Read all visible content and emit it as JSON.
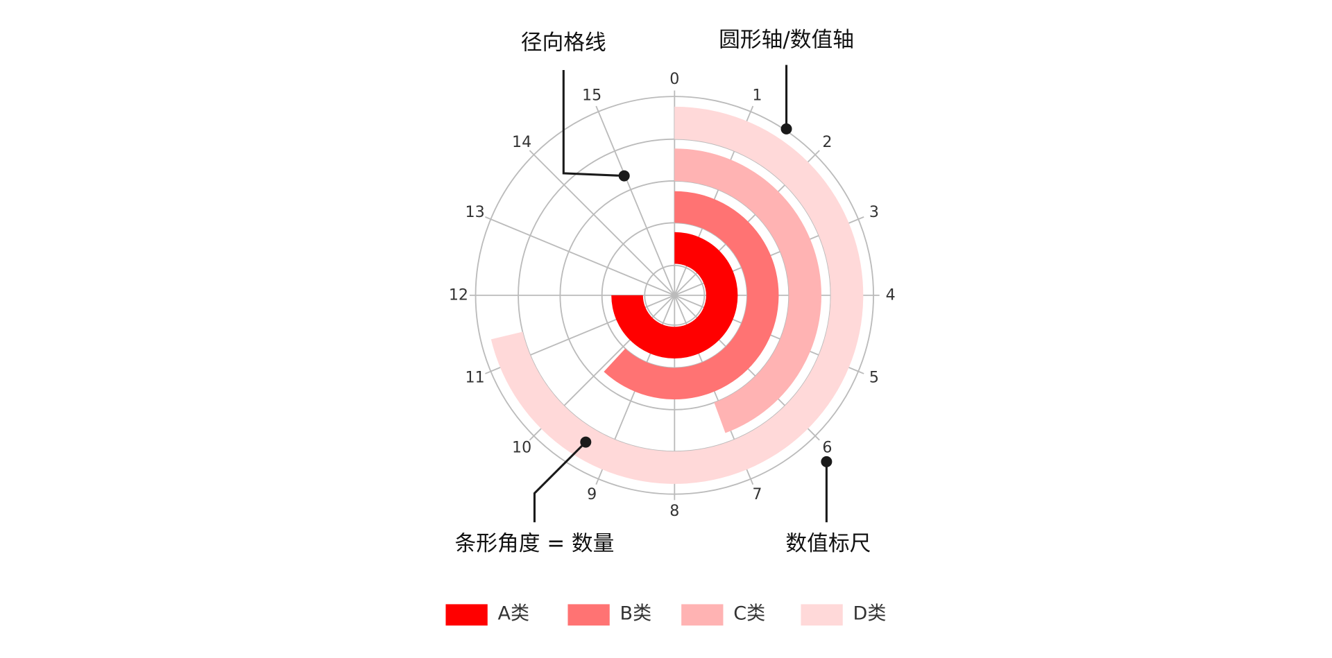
{
  "chart_data": {
    "type": "radial-bar",
    "series": [
      {
        "name": "A类",
        "color": "#ff0000",
        "values": [
          12
        ]
      },
      {
        "name": "B类",
        "color": "#ff7373",
        "values": [
          9.9
        ]
      },
      {
        "name": "C类",
        "color": "#ffb3b3",
        "values": [
          7.1
        ]
      },
      {
        "name": "D类",
        "color": "#ffd9d9",
        "values": [
          11.4
        ]
      }
    ],
    "xlim": [
      0,
      16
    ],
    "xticks": [
      0,
      1,
      2,
      3,
      4,
      5,
      6,
      7,
      8,
      9,
      10,
      11,
      12,
      13,
      14,
      15
    ],
    "grid": true,
    "annotations": [
      "径向格线",
      "圆形轴/数值轴",
      "条形角度 = 数量",
      "数值标尺"
    ]
  }
}
